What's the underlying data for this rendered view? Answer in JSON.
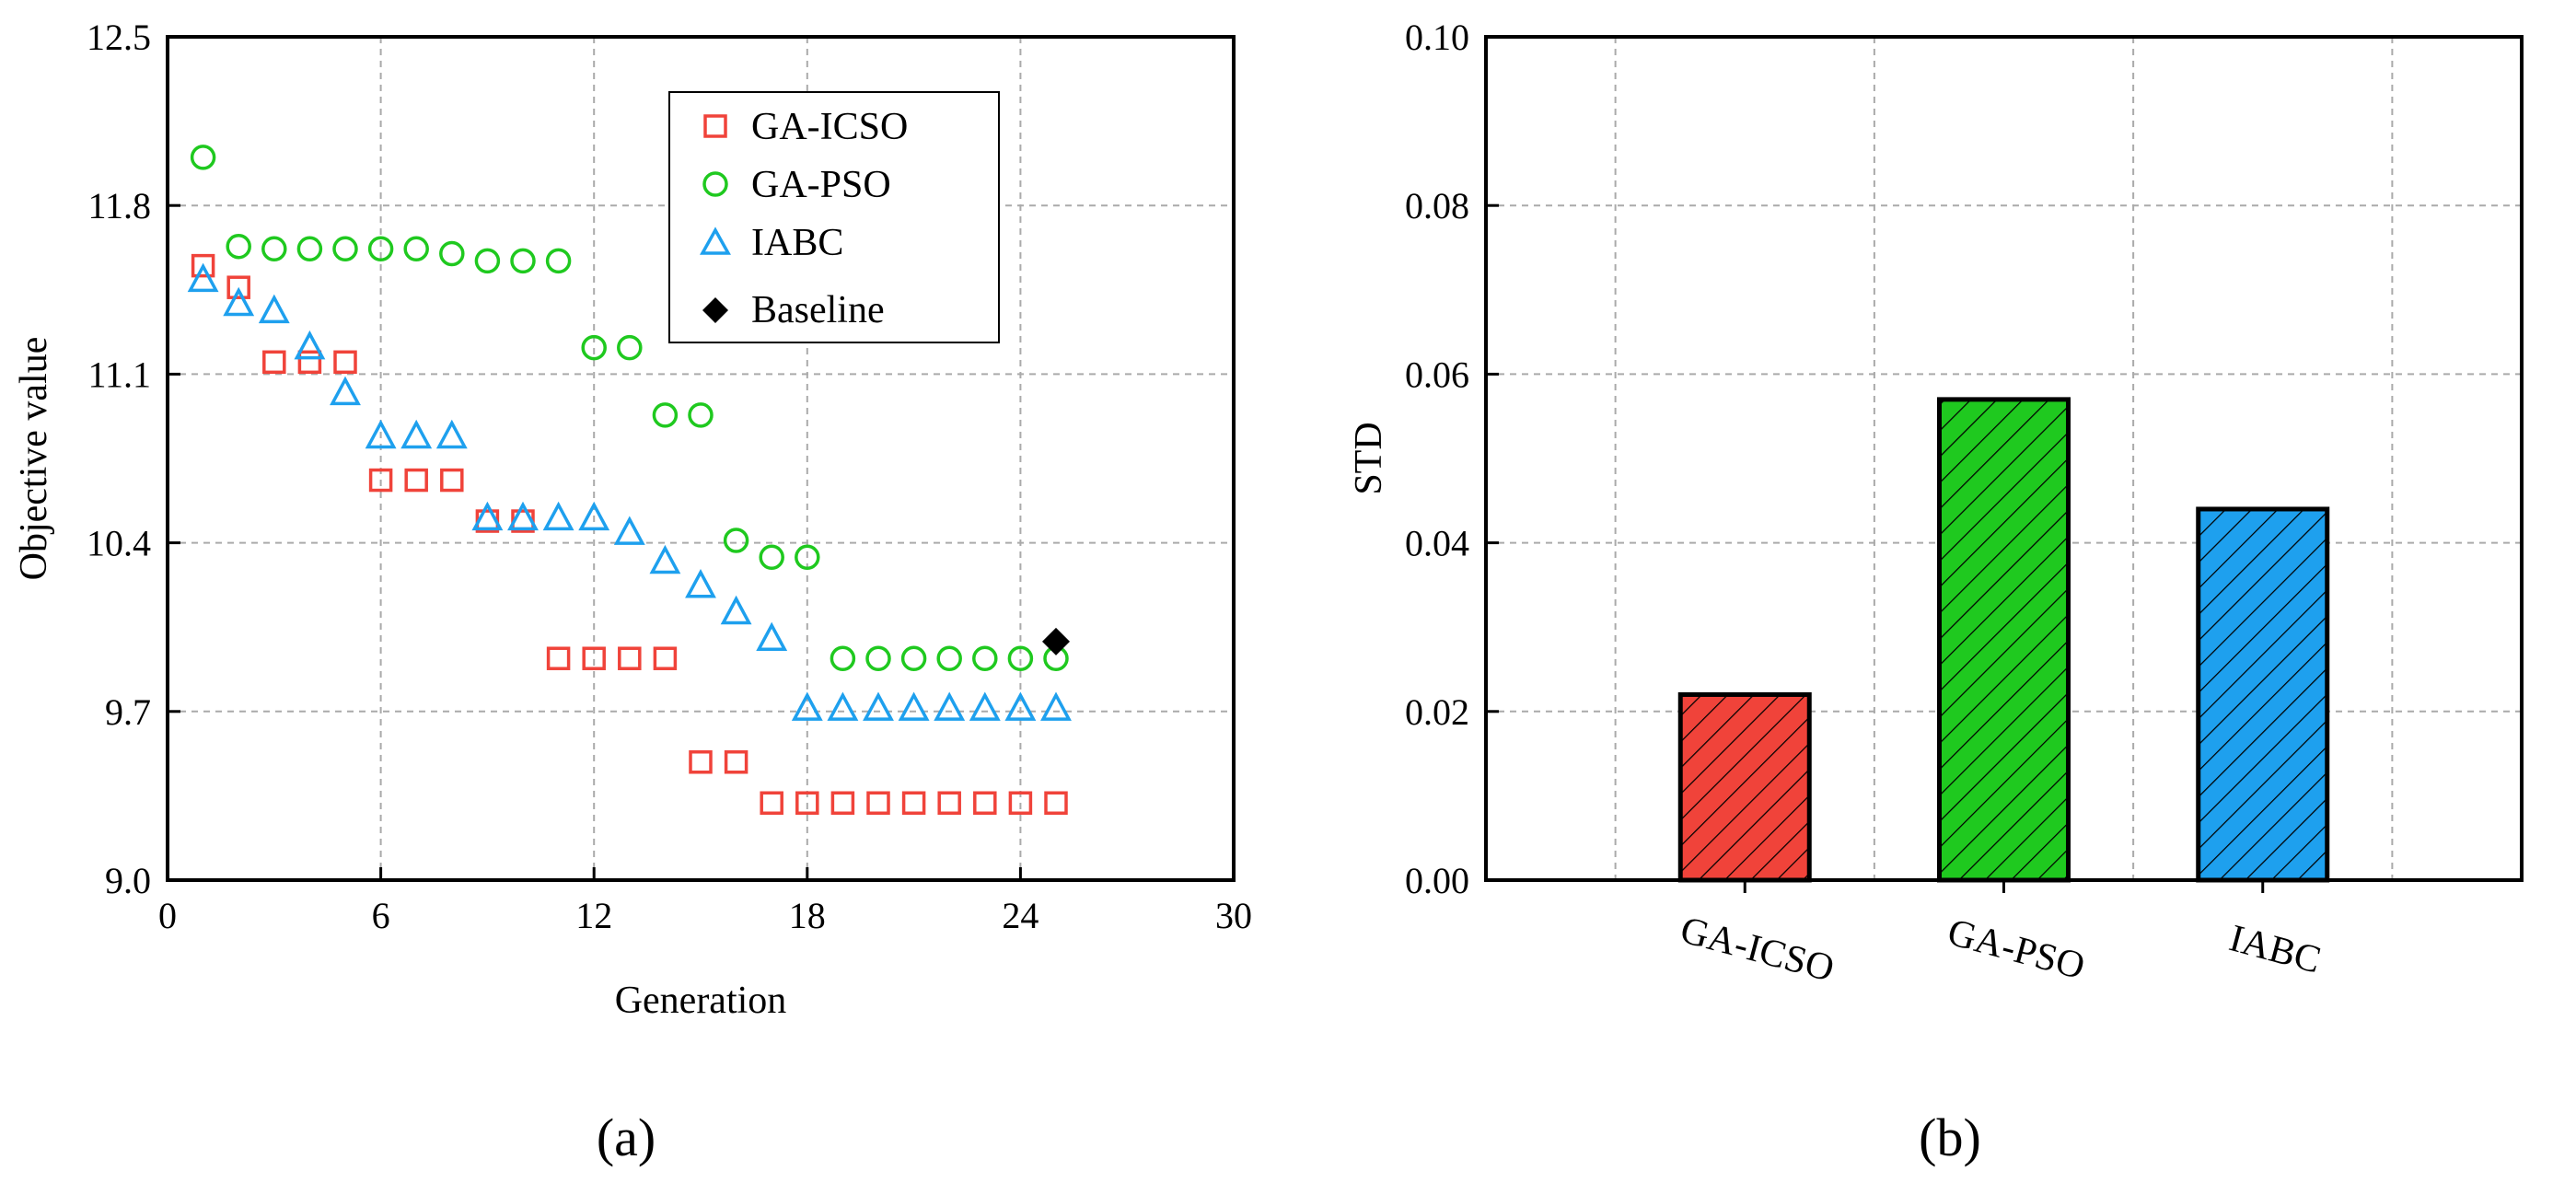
{
  "colors": {
    "ga_icso": "#f0433a",
    "ga_pso": "#1fc91f",
    "iabc": "#1ea0ee",
    "baseline": "#000000",
    "grid": "#aaaaaa"
  },
  "panels": {
    "a": "(a)",
    "b": "(b)"
  },
  "chart_data": [
    {
      "type": "scatter",
      "panel": "(a)",
      "title": "",
      "xlabel": "Generation",
      "ylabel": "Objective value",
      "xlim": [
        0,
        30
      ],
      "ylim": [
        9.0,
        12.5
      ],
      "xticks": [
        "0",
        "6",
        "12",
        "18",
        "24",
        "30"
      ],
      "yticks": [
        "9.0",
        "9.7",
        "10.4",
        "11.1",
        "11.8",
        "12.5"
      ],
      "xtick_values": [
        0,
        6,
        12,
        18,
        24,
        30
      ],
      "ytick_values": [
        9.0,
        9.7,
        10.4,
        11.1,
        11.8,
        12.5
      ],
      "grid": true,
      "legend_position": "top-right",
      "series": [
        {
          "name": "GA-ICSO",
          "marker": "square",
          "color": "#f0433a",
          "points": [
            [
              1,
              11.55
            ],
            [
              2,
              11.46
            ],
            [
              3,
              11.15
            ],
            [
              4,
              11.15
            ],
            [
              5,
              11.15
            ],
            [
              6,
              10.66
            ],
            [
              7,
              10.66
            ],
            [
              8,
              10.66
            ],
            [
              9,
              10.49
            ],
            [
              10,
              10.49
            ],
            [
              11,
              9.92
            ],
            [
              12,
              9.92
            ],
            [
              13,
              9.92
            ],
            [
              14,
              9.92
            ],
            [
              15,
              9.49
            ],
            [
              16,
              9.49
            ],
            [
              17,
              9.32
            ],
            [
              18,
              9.32
            ],
            [
              19,
              9.32
            ],
            [
              20,
              9.32
            ],
            [
              21,
              9.32
            ],
            [
              22,
              9.32
            ],
            [
              23,
              9.32
            ],
            [
              24,
              9.32
            ],
            [
              25,
              9.32
            ]
          ]
        },
        {
          "name": "GA-PSO",
          "marker": "circle",
          "color": "#1fc91f",
          "points": [
            [
              1,
              12.0
            ],
            [
              2,
              11.63
            ],
            [
              3,
              11.62
            ],
            [
              4,
              11.62
            ],
            [
              5,
              11.62
            ],
            [
              6,
              11.62
            ],
            [
              7,
              11.62
            ],
            [
              8,
              11.6
            ],
            [
              9,
              11.57
            ],
            [
              10,
              11.57
            ],
            [
              11,
              11.57
            ],
            [
              12,
              11.21
            ],
            [
              13,
              11.21
            ],
            [
              14,
              10.93
            ],
            [
              15,
              10.93
            ],
            [
              16,
              10.41
            ],
            [
              17,
              10.34
            ],
            [
              18,
              10.34
            ],
            [
              19,
              9.92
            ],
            [
              20,
              9.92
            ],
            [
              21,
              9.92
            ],
            [
              22,
              9.92
            ],
            [
              23,
              9.92
            ],
            [
              24,
              9.92
            ],
            [
              25,
              9.92
            ]
          ]
        },
        {
          "name": "IABC",
          "marker": "triangle",
          "color": "#1ea0ee",
          "points": [
            [
              1,
              11.49
            ],
            [
              2,
              11.39
            ],
            [
              3,
              11.36
            ],
            [
              4,
              11.21
            ],
            [
              5,
              11.02
            ],
            [
              6,
              10.84
            ],
            [
              7,
              10.84
            ],
            [
              8,
              10.84
            ],
            [
              9,
              10.5
            ],
            [
              10,
              10.5
            ],
            [
              11,
              10.5
            ],
            [
              12,
              10.5
            ],
            [
              13,
              10.44
            ],
            [
              14,
              10.32
            ],
            [
              15,
              10.22
            ],
            [
              16,
              10.11
            ],
            [
              17,
              10.0
            ],
            [
              18,
              9.71
            ],
            [
              19,
              9.71
            ],
            [
              20,
              9.71
            ],
            [
              21,
              9.71
            ],
            [
              22,
              9.71
            ],
            [
              23,
              9.71
            ],
            [
              24,
              9.71
            ],
            [
              25,
              9.71
            ]
          ]
        },
        {
          "name": "Baseline",
          "marker": "diamond",
          "color": "#000000",
          "points": [
            [
              25,
              9.99
            ]
          ]
        }
      ]
    },
    {
      "type": "bar",
      "panel": "(b)",
      "title": "",
      "xlabel": "",
      "ylabel": "STD",
      "ylim": [
        0,
        0.1
      ],
      "yticks": [
        "0.00",
        "0.02",
        "0.04",
        "0.06",
        "0.08",
        "0.10"
      ],
      "ytick_values": [
        0,
        0.02,
        0.04,
        0.06,
        0.08,
        0.1
      ],
      "grid": true,
      "hatch": "diagonal",
      "categories": [
        "GA-ICSO",
        "GA-PSO",
        "IABC"
      ],
      "values": [
        0.022,
        0.057,
        0.044
      ],
      "colors": [
        "#f0433a",
        "#1fc91f",
        "#1ea0ee"
      ]
    }
  ]
}
